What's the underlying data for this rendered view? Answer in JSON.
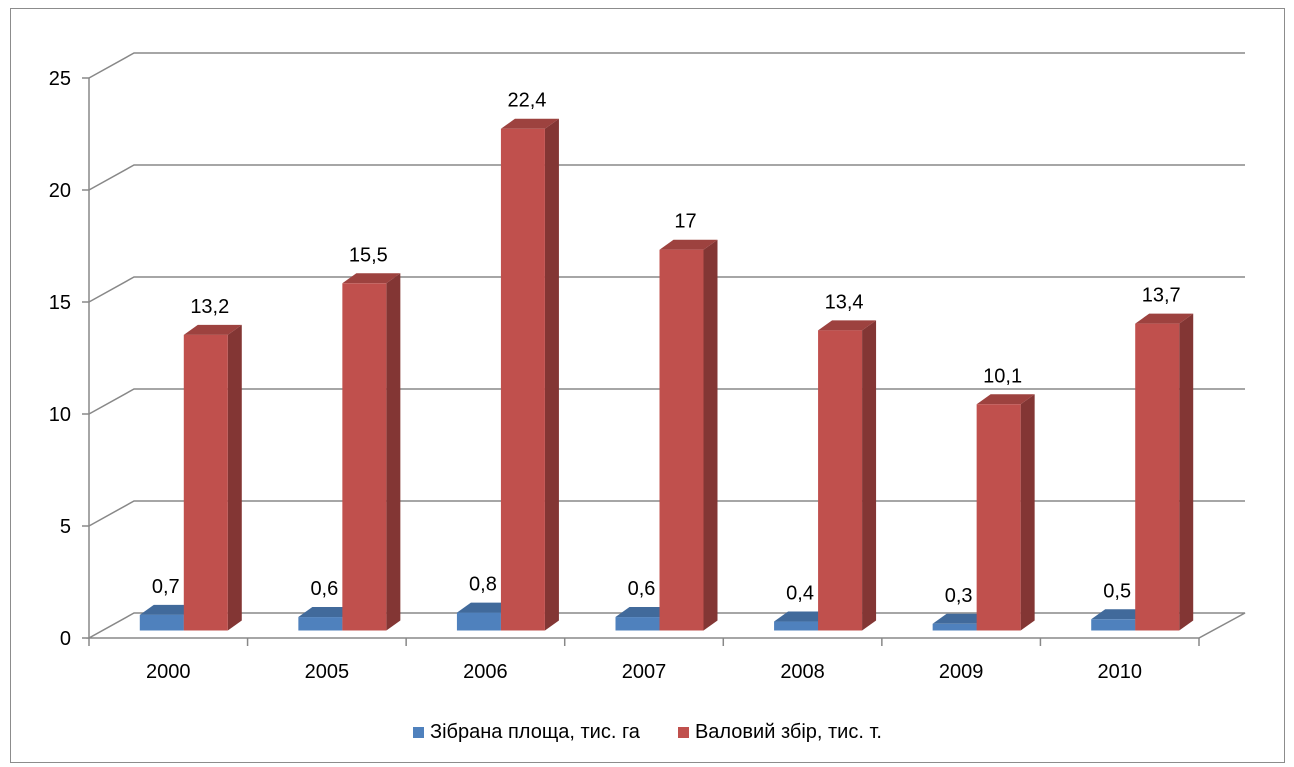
{
  "chart_data": {
    "type": "bar",
    "title": "",
    "xlabel": "",
    "ylabel": "",
    "categories": [
      "2000",
      "2005",
      "2006",
      "2007",
      "2008",
      "2009",
      "2010"
    ],
    "series": [
      {
        "name": "Зібрана площа, тис. га",
        "values": [
          0.7,
          0.6,
          0.8,
          0.6,
          0.4,
          0.3,
          0.5
        ],
        "labels": [
          "0,7",
          "0,6",
          "0,8",
          "0,6",
          "0,4",
          "0,3",
          "0,5"
        ],
        "color": "#4f81bd"
      },
      {
        "name": "Валовий збір, тис. т.",
        "values": [
          13.2,
          15.5,
          22.4,
          17,
          13.4,
          10.1,
          13.7
        ],
        "labels": [
          "13,2",
          "15,5",
          "22,4",
          "17",
          "13,4",
          "10,1",
          "13,7"
        ],
        "color": "#c0504d"
      }
    ],
    "ylim": [
      0,
      25
    ],
    "yticks": [
      "0",
      "5",
      "10",
      "15",
      "20",
      "25"
    ],
    "grid": true,
    "legend_position": "bottom",
    "style": "3d-clustered-column"
  }
}
